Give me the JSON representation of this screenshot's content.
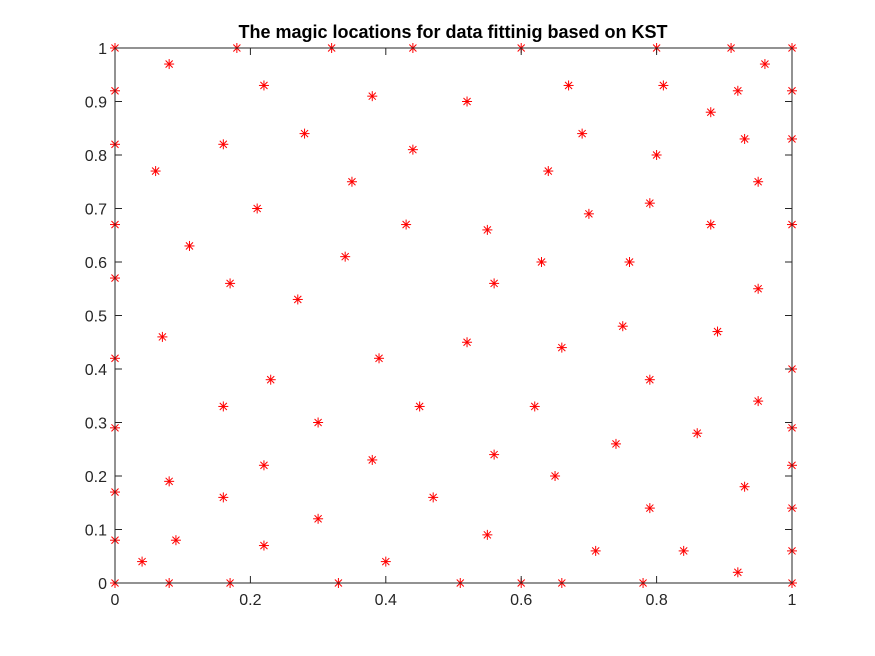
{
  "chart_data": {
    "type": "scatter",
    "title": "The magic locations for data fittinig based on KST",
    "xlabel": "",
    "ylabel": "",
    "xlim": [
      0,
      1
    ],
    "ylim": [
      0,
      1
    ],
    "x_ticks": [
      0,
      0.2,
      0.4,
      0.6,
      0.8,
      1
    ],
    "x_tick_labels": [
      "0",
      "0.2",
      "0.4",
      "0.6",
      "0.8",
      "1"
    ],
    "y_ticks": [
      0,
      0.1,
      0.2,
      0.3,
      0.4,
      0.5,
      0.6,
      0.7,
      0.8,
      0.9,
      1
    ],
    "y_tick_labels": [
      "0",
      "0.1",
      "0.2",
      "0.3",
      "0.4",
      "0.5",
      "0.6",
      "0.7",
      "0.8",
      "0.9",
      "1"
    ],
    "grid": false,
    "marker": "asterisk",
    "marker_color": "#ff0000",
    "series": [
      {
        "points": [
          [
            0,
            1.0
          ],
          [
            0,
            0.92
          ],
          [
            0,
            0.82
          ],
          [
            0,
            0.67
          ],
          [
            0,
            0.57
          ],
          [
            0,
            0.42
          ],
          [
            0,
            0.29
          ],
          [
            0,
            0.17
          ],
          [
            0,
            0.08
          ],
          [
            0,
            0
          ],
          [
            0.04,
            0.04
          ],
          [
            0.06,
            0.77
          ],
          [
            0.07,
            0.46
          ],
          [
            0.08,
            0.97
          ],
          [
            0.08,
            0.19
          ],
          [
            0.08,
            0
          ],
          [
            0.09,
            0.08
          ],
          [
            0.11,
            0.63
          ],
          [
            0.16,
            0.82
          ],
          [
            0.16,
            0.33
          ],
          [
            0.16,
            0.16
          ],
          [
            0.17,
            0.56
          ],
          [
            0.17,
            0
          ],
          [
            0.18,
            1.0
          ],
          [
            0.21,
            0.7
          ],
          [
            0.22,
            0.93
          ],
          [
            0.22,
            0.22
          ],
          [
            0.22,
            0.07
          ],
          [
            0.23,
            0.38
          ],
          [
            0.27,
            0.53
          ],
          [
            0.28,
            0.84
          ],
          [
            0.3,
            0.3
          ],
          [
            0.3,
            0.12
          ],
          [
            0.32,
            1.0
          ],
          [
            0.33,
            0
          ],
          [
            0.34,
            0.61
          ],
          [
            0.35,
            0.75
          ],
          [
            0.38,
            0.91
          ],
          [
            0.38,
            0.23
          ],
          [
            0.39,
            0.42
          ],
          [
            0.4,
            0.04
          ],
          [
            0.43,
            0.67
          ],
          [
            0.44,
            1.0
          ],
          [
            0.44,
            0.81
          ],
          [
            0.45,
            0.33
          ],
          [
            0.47,
            0.16
          ],
          [
            0.51,
            0
          ],
          [
            0.52,
            0.9
          ],
          [
            0.52,
            0.45
          ],
          [
            0.55,
            0.66
          ],
          [
            0.55,
            0.09
          ],
          [
            0.56,
            0.56
          ],
          [
            0.56,
            0.24
          ],
          [
            0.6,
            1.0
          ],
          [
            0.6,
            0
          ],
          [
            0.62,
            0.33
          ],
          [
            0.63,
            0.6
          ],
          [
            0.64,
            0.77
          ],
          [
            0.65,
            0.2
          ],
          [
            0.66,
            0.44
          ],
          [
            0.66,
            0
          ],
          [
            0.67,
            0.93
          ],
          [
            0.69,
            0.84
          ],
          [
            0.7,
            0.69
          ],
          [
            0.71,
            0.06
          ],
          [
            0.74,
            0.26
          ],
          [
            0.75,
            0.48
          ],
          [
            0.76,
            0.6
          ],
          [
            0.78,
            0
          ],
          [
            0.79,
            0.71
          ],
          [
            0.79,
            0.38
          ],
          [
            0.79,
            0.14
          ],
          [
            0.8,
            1.0
          ],
          [
            0.8,
            0.8
          ],
          [
            0.81,
            0.93
          ],
          [
            0.84,
            0.06
          ],
          [
            0.86,
            0.28
          ],
          [
            0.88,
            0.88
          ],
          [
            0.88,
            0.67
          ],
          [
            0.89,
            0.47
          ],
          [
            0.91,
            1.0
          ],
          [
            0.92,
            0.92
          ],
          [
            0.92,
            0.02
          ],
          [
            0.93,
            0.83
          ],
          [
            0.93,
            0.18
          ],
          [
            0.95,
            0.75
          ],
          [
            0.95,
            0.55
          ],
          [
            0.95,
            0.34
          ],
          [
            0.96,
            0.97
          ],
          [
            1,
            1.0
          ],
          [
            1,
            0.92
          ],
          [
            1,
            0.83
          ],
          [
            1,
            0.67
          ],
          [
            1,
            0.4
          ],
          [
            1,
            0.29
          ],
          [
            1,
            0.22
          ],
          [
            1,
            0.14
          ],
          [
            1,
            0.06
          ],
          [
            1,
            0
          ]
        ]
      }
    ]
  }
}
